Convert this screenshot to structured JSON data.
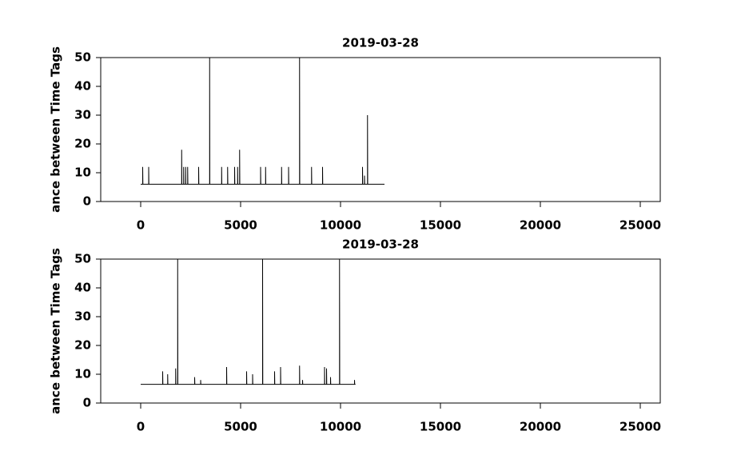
{
  "chart_data": [
    {
      "type": "line",
      "title": "2019-03-28",
      "y_label": "ance between Time Tags",
      "xlim": [
        -2000,
        26000
      ],
      "ylim": [
        0,
        50
      ],
      "xticks": [
        0,
        5000,
        10000,
        15000,
        20000,
        25000
      ],
      "yticks": [
        0,
        10,
        20,
        30,
        40,
        50
      ],
      "x": [
        0,
        100,
        100,
        110,
        400,
        400,
        410,
        2050,
        2050,
        2060,
        2150,
        2150,
        2160,
        2250,
        2250,
        2260,
        2350,
        2350,
        2360,
        2900,
        2900,
        2910,
        3450,
        3450,
        3460,
        4050,
        4050,
        4060,
        4350,
        4350,
        4360,
        4700,
        4700,
        4710,
        4850,
        4850,
        4860,
        4950,
        4950,
        4960,
        6000,
        6000,
        6010,
        6250,
        6250,
        6260,
        7050,
        7050,
        7060,
        7400,
        7400,
        7410,
        7950,
        7950,
        7960,
        8550,
        8550,
        8560,
        9100,
        9100,
        9110,
        11100,
        11100,
        11110,
        11200,
        11200,
        11210,
        11350,
        11350,
        11360,
        12200
      ],
      "series": [
        {
          "color": "#000000",
          "values": [
            6,
            6,
            12,
            6,
            6,
            12,
            6,
            6,
            18,
            6,
            6,
            12,
            6,
            6,
            12,
            6,
            6,
            12,
            6,
            6,
            12,
            6,
            6,
            50,
            6,
            6,
            12,
            6,
            6,
            12,
            6,
            6,
            12,
            6,
            6,
            12,
            6,
            6,
            18,
            6,
            6,
            12,
            6,
            6,
            12,
            6,
            6,
            12,
            6,
            6,
            12,
            6,
            6,
            50,
            6,
            6,
            12,
            6,
            6,
            12,
            6,
            6,
            12,
            6,
            6,
            9,
            6,
            6,
            30,
            6,
            6
          ]
        }
      ]
    },
    {
      "type": "line",
      "title": "2019-03-28",
      "y_label": "ance between Time Tags",
      "xlim": [
        -2000,
        26000
      ],
      "ylim": [
        0,
        50
      ],
      "xticks": [
        0,
        5000,
        10000,
        15000,
        20000,
        25000
      ],
      "yticks": [
        0,
        10,
        20,
        30,
        40,
        50
      ],
      "x": [
        0,
        1100,
        1100,
        1110,
        1350,
        1350,
        1360,
        1750,
        1750,
        1760,
        1850,
        1850,
        1860,
        2700,
        2700,
        2710,
        3000,
        3000,
        3010,
        4300,
        4300,
        4310,
        5300,
        5300,
        5310,
        5600,
        5600,
        5610,
        6100,
        6100,
        6110,
        6700,
        6700,
        6710,
        7000,
        7000,
        7010,
        7950,
        7950,
        7960,
        8100,
        8100,
        8110,
        9200,
        9200,
        9210,
        9300,
        9300,
        9310,
        9500,
        9500,
        9510,
        9950,
        9950,
        9960,
        10700,
        10700,
        10710,
        10750
      ],
      "series": [
        {
          "color": "#000000",
          "values": [
            6.5,
            6.5,
            11,
            6.5,
            6.5,
            10,
            6.5,
            6.5,
            12,
            6.5,
            6.5,
            50,
            6.5,
            6.5,
            9,
            6.5,
            6.5,
            8,
            6.5,
            6.5,
            12.5,
            6.5,
            6.5,
            11,
            6.5,
            6.5,
            10,
            6.5,
            6.5,
            50,
            6.5,
            6.5,
            11,
            6.5,
            6.5,
            12.5,
            6.5,
            6.5,
            13,
            6.5,
            6.5,
            8,
            6.5,
            6.5,
            12.5,
            6.5,
            6.5,
            12,
            6.5,
            6.5,
            9,
            6.5,
            6.5,
            50,
            6.5,
            6.5,
            8,
            6.5,
            6.5
          ]
        }
      ]
    }
  ]
}
